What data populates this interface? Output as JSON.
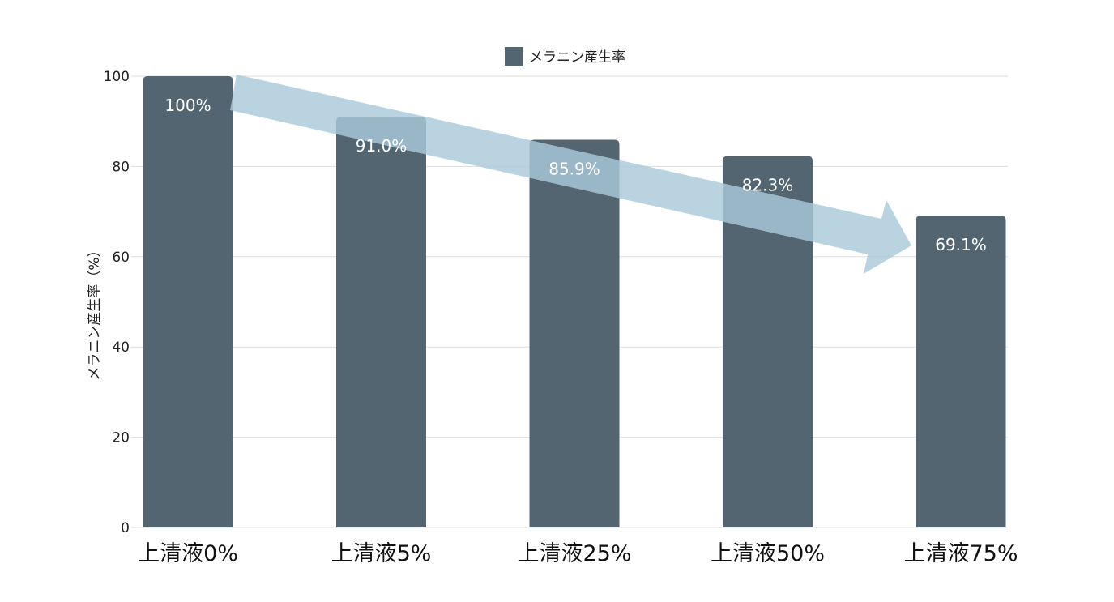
{
  "chart_data": {
    "type": "bar",
    "categories": [
      "上清液0%",
      "上清液5%",
      "上清液25%",
      "上清液50%",
      "上清液75%"
    ],
    "series": [
      {
        "name": "メラニン産生率",
        "values": [
          100,
          91.0,
          85.9,
          82.3,
          69.1
        ]
      }
    ],
    "data_labels": [
      "100%",
      "91.0%",
      "85.9%",
      "82.3%",
      "69.1%"
    ],
    "ylabel": "メラニン産生率（%）",
    "ylim": [
      0,
      100
    ],
    "yticks": [
      "0",
      "20",
      "40",
      "60",
      "80",
      "100"
    ],
    "grid": true,
    "legend": "top-center",
    "colors": {
      "bar": "#536570",
      "arrow": "#A9C9DA",
      "grid": "#DDDDDD"
    },
    "annotation": {
      "type": "trend-arrow",
      "direction": "down-right"
    }
  }
}
